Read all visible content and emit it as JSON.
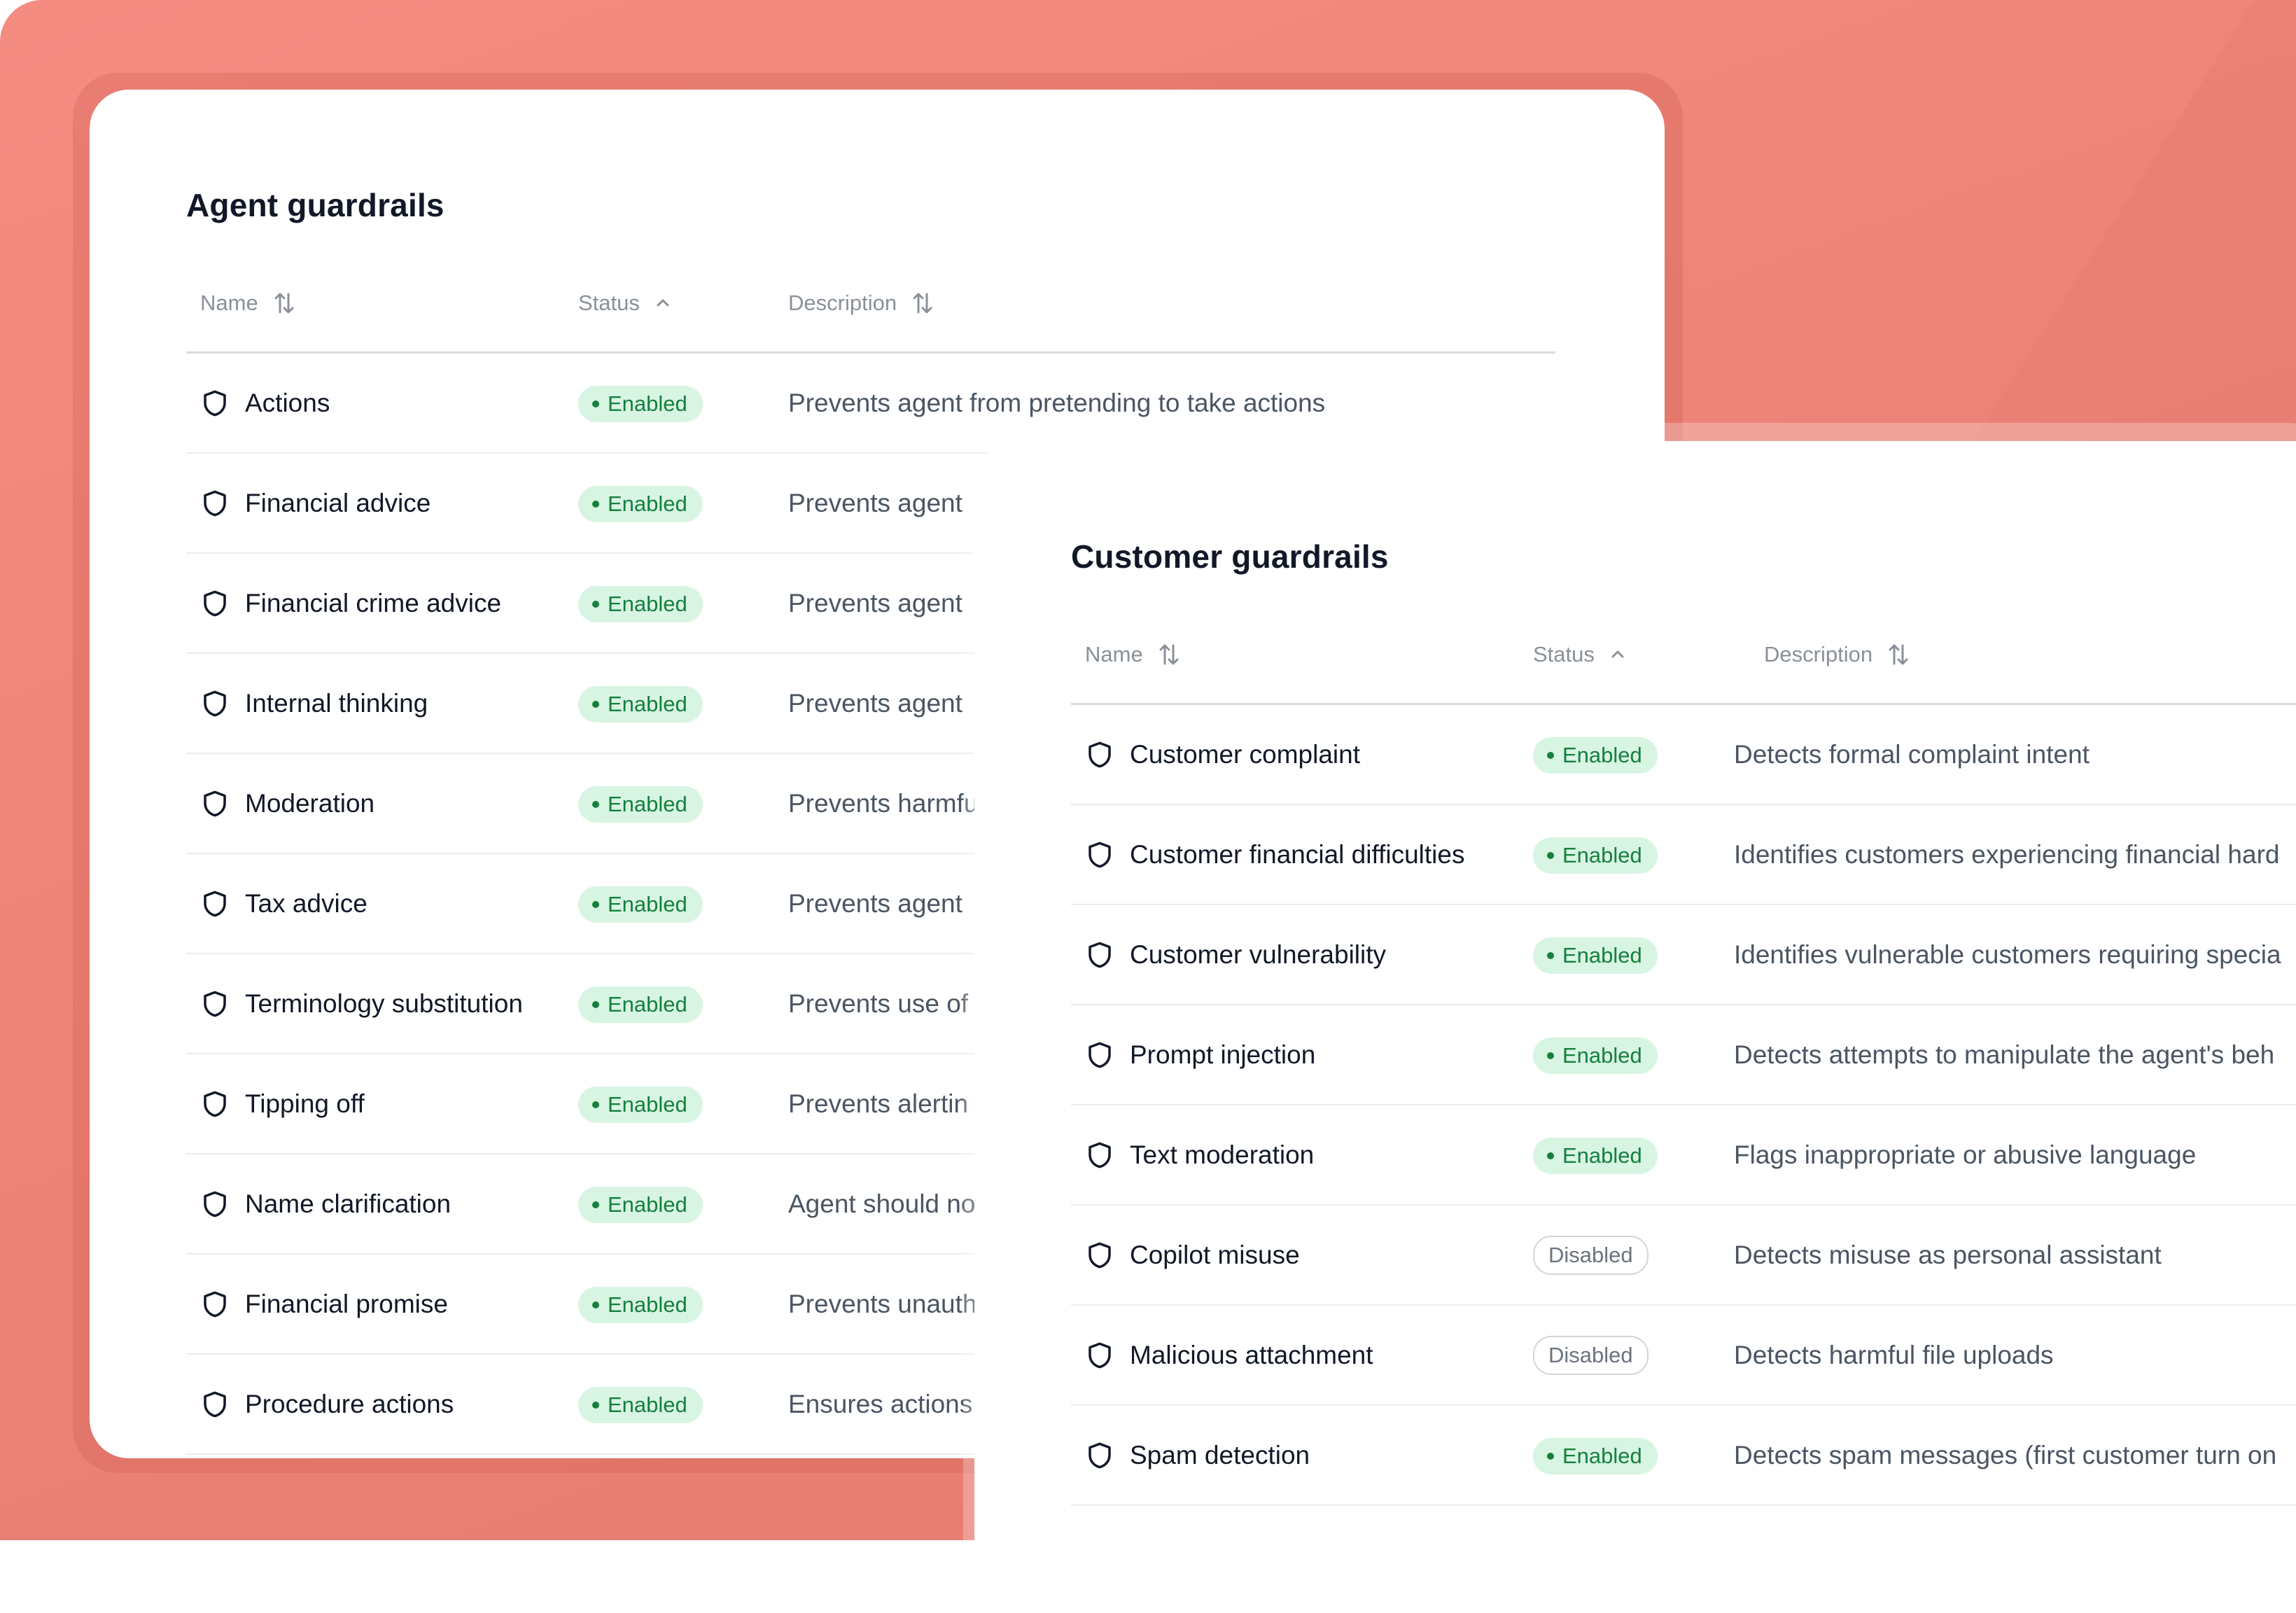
{
  "agent": {
    "title": "Agent guardrails",
    "columns": {
      "name": "Name",
      "status": "Status",
      "description": "Description"
    },
    "rows": [
      {
        "name": "Actions",
        "status": "Enabled",
        "description": "Prevents agent from pretending to take actions"
      },
      {
        "name": "Financial advice",
        "status": "Enabled",
        "description": "Prevents agent"
      },
      {
        "name": "Financial crime advice",
        "status": "Enabled",
        "description": "Prevents agent"
      },
      {
        "name": "Internal thinking",
        "status": "Enabled",
        "description": "Prevents agent"
      },
      {
        "name": "Moderation",
        "status": "Enabled",
        "description": "Prevents harmfu"
      },
      {
        "name": "Tax advice",
        "status": "Enabled",
        "description": "Prevents agent"
      },
      {
        "name": "Terminology substitution",
        "status": "Enabled",
        "description": "Prevents use of"
      },
      {
        "name": "Tipping off",
        "status": "Enabled",
        "description": "Prevents alertin"
      },
      {
        "name": "Name clarification",
        "status": "Enabled",
        "description": "Agent should no"
      },
      {
        "name": "Financial promise",
        "status": "Enabled",
        "description": "Prevents unauth"
      },
      {
        "name": "Procedure actions",
        "status": "Enabled",
        "description": "Ensures actions"
      }
    ]
  },
  "customer": {
    "title": "Customer guardrails",
    "columns": {
      "name": "Name",
      "status": "Status",
      "description": "Description"
    },
    "rows": [
      {
        "name": "Customer complaint",
        "status": "Enabled",
        "description": "Detects formal complaint intent"
      },
      {
        "name": "Customer financial difficulties",
        "status": "Enabled",
        "description": "Identifies customers experiencing financial hard"
      },
      {
        "name": "Customer vulnerability",
        "status": "Enabled",
        "description": "Identifies vulnerable customers requiring specia"
      },
      {
        "name": "Prompt injection",
        "status": "Enabled",
        "description": "Detects attempts to manipulate the agent's beh"
      },
      {
        "name": "Text moderation",
        "status": "Enabled",
        "description": "Flags inappropriate or abusive language"
      },
      {
        "name": "Copilot misuse",
        "status": "Disabled",
        "description": "Detects misuse as personal assistant"
      },
      {
        "name": "Malicious attachment",
        "status": "Disabled",
        "description": "Detects harmful file uploads"
      },
      {
        "name": "Spam detection",
        "status": "Enabled",
        "description": "Detects spam messages (first customer turn on"
      }
    ]
  },
  "icons": {
    "row": "shield-icon",
    "sort": "sort-arrows-icon",
    "status_sort": "chevron-up-icon"
  },
  "colors": {
    "background": "#f08a80",
    "enabled_bg": "#d8f5e3",
    "enabled_text": "#15803d",
    "disabled_border": "#d1d5db"
  }
}
